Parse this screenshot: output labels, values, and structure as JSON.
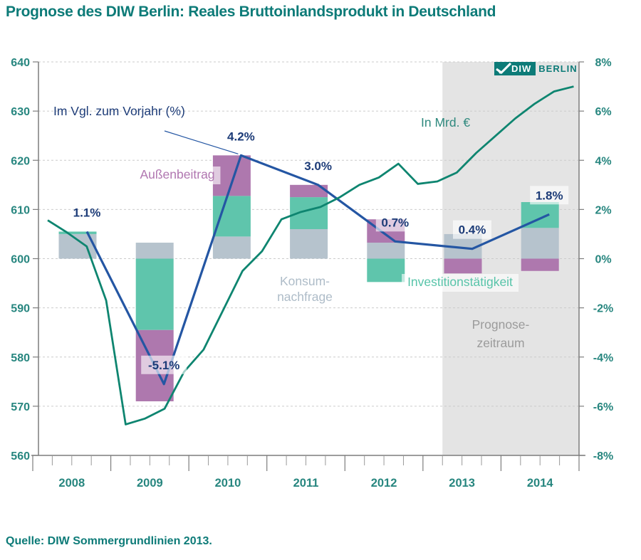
{
  "title": "Prognose des DIW Berlin: Reales Bruttoinlandsprodukt in Deutschland",
  "source": "Quelle: DIW Sommergrundlinien 2013.",
  "logo": {
    "diw": "DIW",
    "berlin": "BERLIN"
  },
  "colors": {
    "title_teal": "#0d7b78",
    "axis_teal": "#27867f",
    "line_green": "#0e8570",
    "line_blue": "#2456a3",
    "label_blue": "#1d3c78",
    "bar_konsum": "#b6c3cd",
    "bar_invest": "#5fc5ac",
    "bar_aussen": "#ae78ae",
    "konsum_text": "#aebcc8",
    "invest_text": "#57c4a9",
    "aussen_text": "#b076b0",
    "prognose_text": "#9b9b9b",
    "in_mrd_text": "#2f897e",
    "band": "#e4e4e4",
    "grid": "#cbcbcb",
    "axis_gray": "#7d7d7d",
    "quarter_tick": "#9a9a9a"
  },
  "annotations": {
    "growth_unit_label": "Im Vgl. zum Vorjahr (%)",
    "level_unit_label": "In Mrd. €",
    "aussenbeitrag_label": "Außenbeitrag",
    "konsum_label_line1": "Konsum-",
    "konsum_label_line2": "nachfrage",
    "invest_label": "Investitionstätigkeit",
    "prognose_label_line1": "Prognose-",
    "prognose_label_line2": "zeitraum"
  },
  "chart_data": {
    "type": "bar",
    "subtype": "stacked-bars-with-two-lines",
    "years": [
      "2008",
      "2009",
      "2010",
      "2011",
      "2012",
      "2013",
      "2014"
    ],
    "left_axis": {
      "label": "In Mrd. €",
      "min": 560,
      "max": 640,
      "step": 10
    },
    "right_axis": {
      "unit": "%",
      "min": -8,
      "max": 8,
      "step": 2
    },
    "grid": "dashed-horizontal",
    "series": [
      {
        "name": "Konsumnachfrage",
        "type": "bar",
        "color_key": "bar_konsum",
        "values_pct": [
          1.0,
          0.65,
          0.9,
          1.2,
          0.65,
          1.0,
          1.25
        ]
      },
      {
        "name": "Investitionstätigkeit",
        "type": "bar",
        "color_key": "bar_invest",
        "values_pct": [
          0.1,
          -2.9,
          1.65,
          1.3,
          -0.95,
          0.0,
          1.05
        ]
      },
      {
        "name": "Außenbeitrag",
        "type": "bar",
        "color_key": "bar_aussen",
        "values_pct": [
          0.0,
          -2.9,
          1.65,
          0.5,
          0.95,
          -0.6,
          -0.5
        ]
      },
      {
        "name": "Im Vgl. zum Vorjahr (%)",
        "type": "line",
        "axis": "right",
        "color_key": "line_blue",
        "values_pct": [
          1.1,
          -5.1,
          4.2,
          3.0,
          0.7,
          0.4,
          1.8
        ],
        "labels": [
          "1.1%",
          "-5.1%",
          "4.2%",
          "3.0%",
          "0.7%",
          "0.4%",
          "1.8%"
        ],
        "label_boxed": [
          false,
          true,
          false,
          false,
          true,
          true,
          true
        ]
      },
      {
        "name": "In Mrd. €",
        "type": "line",
        "axis": "left",
        "color_key": "line_green",
        "frequency": "quarterly",
        "start": "2008-Q1",
        "values": [
          607.8,
          605.3,
          602.5,
          591.5,
          566.3,
          567.5,
          569.5,
          577,
          581.5,
          589.5,
          597.5,
          601.5,
          608,
          609.5,
          610.5,
          612.5,
          615,
          616.5,
          619.3,
          615.2,
          615.7,
          617.5,
          621.5,
          625,
          628.5,
          631.5,
          634,
          635
        ]
      }
    ],
    "forecast_band": {
      "starts_at": "2013-Q2",
      "label": "Prognose-zeitraum"
    }
  }
}
